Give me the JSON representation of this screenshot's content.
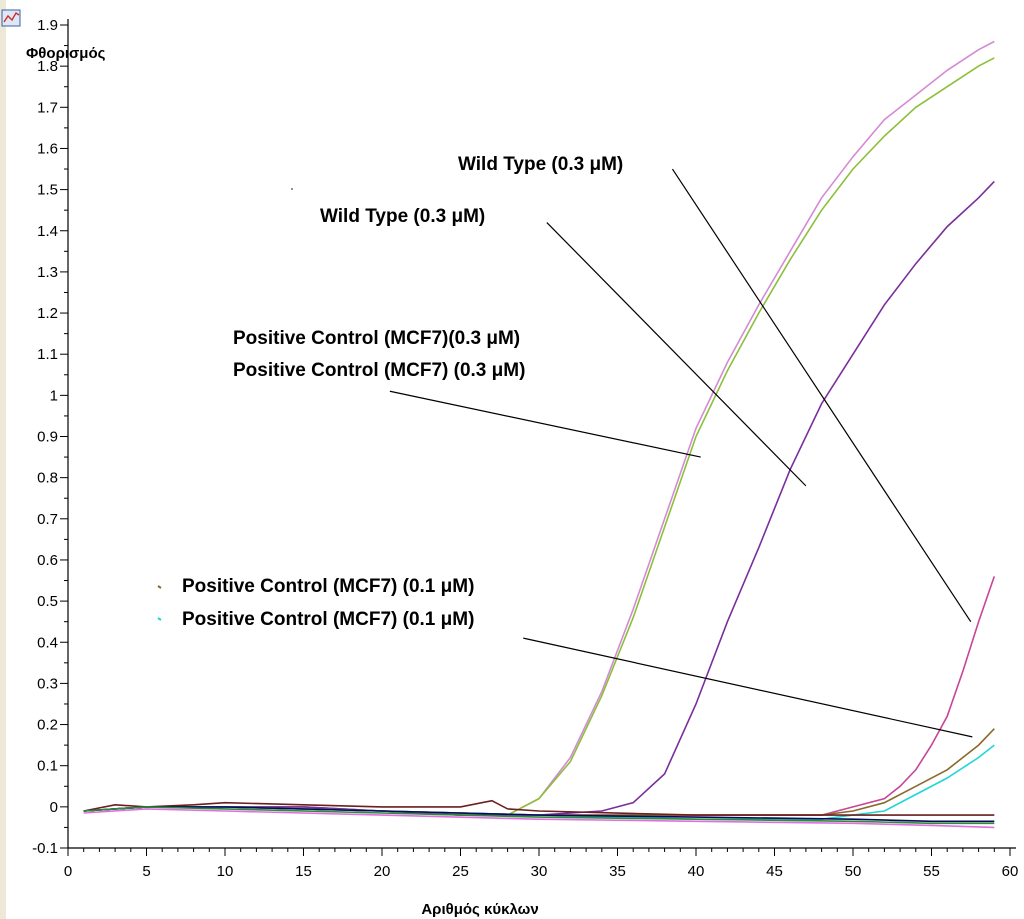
{
  "chart_data": {
    "type": "line",
    "title": "",
    "ylabel": "Φθορισμός",
    "xlabel": "Αριθμός κύκλων",
    "xlim": [
      0,
      60
    ],
    "ylim": [
      -0.1,
      1.9
    ],
    "x_ticks": [
      0,
      5,
      10,
      15,
      20,
      25,
      30,
      35,
      40,
      45,
      50,
      55,
      60
    ],
    "y_ticks": [
      {
        "v": -0.1,
        "label": "-0.1"
      },
      {
        "v": 0,
        "label": "0"
      },
      {
        "v": 0.1,
        "label": "0.1"
      },
      {
        "v": 0.2,
        "label": "0.2"
      },
      {
        "v": 0.3,
        "label": "0.3"
      },
      {
        "v": 0.4,
        "label": "0.4"
      },
      {
        "v": 0.5,
        "label": "0.5"
      },
      {
        "v": 0.6,
        "label": "0.6"
      },
      {
        "v": 0.7,
        "label": "0.7"
      },
      {
        "v": 0.8,
        "label": "0.8"
      },
      {
        "v": 0.9,
        "label": "0.9"
      },
      {
        "v": 1.0,
        "label": "1"
      },
      {
        "v": 1.1,
        "label": "1.1"
      },
      {
        "v": 1.2,
        "label": "1.2"
      },
      {
        "v": 1.3,
        "label": "1.3"
      },
      {
        "v": 1.4,
        "label": "1.4"
      },
      {
        "v": 1.5,
        "label": "1.5"
      },
      {
        "v": 1.6,
        "label": "1.6"
      },
      {
        "v": 1.7,
        "label": "1.7"
      },
      {
        "v": 1.8,
        "label": "1.8"
      },
      {
        "v": 1.9,
        "label": "1.9"
      }
    ],
    "grid": false,
    "series": [
      {
        "color": "#d48ad4",
        "x": [
          1,
          5,
          10,
          15,
          20,
          25,
          28,
          30,
          32,
          34,
          36,
          38,
          40,
          42,
          44,
          46,
          48,
          50,
          52,
          54,
          56,
          58,
          59
        ],
        "y": [
          -0.01,
          0,
          0,
          0,
          -0.01,
          -0.02,
          -0.02,
          0.02,
          0.12,
          0.28,
          0.48,
          0.7,
          0.92,
          1.08,
          1.22,
          1.35,
          1.48,
          1.58,
          1.67,
          1.73,
          1.79,
          1.84,
          1.86
        ]
      },
      {
        "color": "#8cbf3a",
        "x": [
          1,
          5,
          10,
          15,
          20,
          25,
          28,
          30,
          32,
          34,
          36,
          38,
          40,
          42,
          44,
          46,
          48,
          50,
          52,
          54,
          56,
          58,
          59
        ],
        "y": [
          -0.01,
          0,
          0,
          0,
          -0.01,
          -0.02,
          -0.02,
          0.02,
          0.11,
          0.27,
          0.46,
          0.68,
          0.9,
          1.06,
          1.2,
          1.33,
          1.45,
          1.55,
          1.63,
          1.7,
          1.75,
          1.8,
          1.82
        ]
      },
      {
        "color": "#7a2e9c",
        "x": [
          1,
          5,
          10,
          15,
          20,
          25,
          30,
          34,
          36,
          38,
          40,
          42,
          44,
          46,
          48,
          50,
          52,
          54,
          56,
          58,
          59
        ],
        "y": [
          -0.01,
          0,
          0,
          0,
          -0.01,
          -0.02,
          -0.02,
          -0.01,
          0.01,
          0.08,
          0.25,
          0.45,
          0.63,
          0.82,
          0.98,
          1.1,
          1.22,
          1.32,
          1.41,
          1.48,
          1.52
        ]
      },
      {
        "color": "#c8449a",
        "x": [
          1,
          5,
          10,
          20,
          30,
          40,
          48,
          50,
          52,
          53,
          54,
          55,
          56,
          57,
          58,
          59
        ],
        "y": [
          -0.01,
          0,
          0,
          -0.01,
          -0.02,
          -0.02,
          -0.02,
          0,
          0.02,
          0.05,
          0.09,
          0.15,
          0.22,
          0.33,
          0.45,
          0.56
        ]
      },
      {
        "color": "#8a6a2a",
        "x": [
          1,
          5,
          10,
          20,
          30,
          40,
          48,
          50,
          52,
          54,
          56,
          58,
          59
        ],
        "y": [
          -0.01,
          0,
          0,
          -0.01,
          -0.02,
          -0.02,
          -0.02,
          -0.01,
          0.01,
          0.05,
          0.09,
          0.15,
          0.19
        ]
      },
      {
        "color": "#22d6d6",
        "x": [
          1,
          5,
          10,
          20,
          30,
          40,
          48,
          50,
          52,
          54,
          56,
          58,
          59
        ],
        "y": [
          -0.01,
          0,
          0,
          -0.01,
          -0.02,
          -0.03,
          -0.03,
          -0.02,
          -0.01,
          0.03,
          0.07,
          0.12,
          0.15
        ]
      },
      {
        "color": "#6b1f1f",
        "x": [
          1,
          3,
          5,
          8,
          10,
          15,
          20,
          25,
          27,
          28,
          30,
          40,
          50,
          55,
          59
        ],
        "y": [
          -0.01,
          0.005,
          0,
          0.005,
          0.01,
          0.005,
          0,
          0,
          0.015,
          -0.005,
          -0.01,
          -0.02,
          -0.02,
          -0.02,
          -0.02
        ]
      },
      {
        "color": "#0a0a5a",
        "x": [
          1,
          5,
          10,
          20,
          30,
          40,
          50,
          55,
          59
        ],
        "y": [
          -0.01,
          0,
          0,
          -0.01,
          -0.02,
          -0.025,
          -0.03,
          -0.035,
          -0.035
        ]
      },
      {
        "color": "#2e8b3a",
        "x": [
          1,
          5,
          10,
          20,
          30,
          40,
          50,
          55,
          59
        ],
        "y": [
          -0.01,
          0,
          -0.005,
          -0.015,
          -0.025,
          -0.03,
          -0.035,
          -0.04,
          -0.04
        ]
      },
      {
        "color": "#e070e0",
        "x": [
          1,
          5,
          10,
          20,
          30,
          40,
          50,
          55,
          59
        ],
        "y": [
          -0.015,
          -0.005,
          -0.01,
          -0.02,
          -0.03,
          -0.035,
          -0.04,
          -0.045,
          -0.05
        ]
      }
    ],
    "annotations": [
      {
        "text": "Wild Type (0.3 μM)",
        "line_from": [
          57.5,
          0.45
        ],
        "line_to": [
          38.5,
          1.55
        ]
      },
      {
        "text": "Wild Type (0.3 μM)",
        "line_from": [
          47,
          0.78
        ],
        "line_to": [
          30.5,
          1.42
        ]
      },
      {
        "text": "Positive Control (MCF7)(0.3 μM)"
      },
      {
        "text": "Positive Control (MCF7) (0.3 μM)",
        "line_from": [
          20.5,
          1.01
        ],
        "line_to": [
          40.3,
          0.85
        ]
      },
      {
        "text": "Positive Control (MCF7) (0.1 μM)"
      },
      {
        "text": "Positive Control (MCF7) (0.1 μM)",
        "line_from": [
          29,
          0.41
        ],
        "line_to": [
          57.6,
          0.17
        ]
      }
    ],
    "legend_markers": [
      {
        "color": "#8a6a2a"
      },
      {
        "color": "#22d6d6"
      }
    ]
  }
}
